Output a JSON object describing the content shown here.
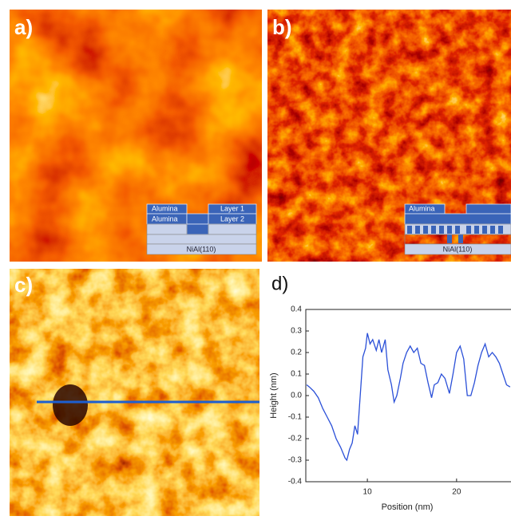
{
  "panels": {
    "a": {
      "label": "a)",
      "schematic": {
        "top_left": "Alumina",
        "top_right": "Layer 1",
        "mid_left": "Alumina",
        "mid_right": "Layer 2",
        "substrate": "NiAl(110)"
      }
    },
    "b": {
      "label": "b)",
      "schematic": {
        "top_left": "Alumina",
        "substrate": "NiAl(110)"
      }
    },
    "c": {
      "label": "c)"
    }
  },
  "chart_data": {
    "type": "line",
    "panel_label": "d)",
    "x_label": "Position (nm)",
    "y_label": "Height (nm)",
    "x": [
      3.2,
      3.5,
      4,
      4.5,
      5,
      5.5,
      6,
      6.5,
      7,
      7.5,
      7.7,
      8,
      8.3,
      8.6,
      8.9,
      9.2,
      9.5,
      9.8,
      10,
      10.3,
      10.6,
      11,
      11.3,
      11.6,
      12,
      12.3,
      12.7,
      13,
      13.3,
      13.7,
      14,
      14.4,
      14.8,
      15.2,
      15.6,
      16,
      16.4,
      16.8,
      17.2,
      17.5,
      17.9,
      18.3,
      18.7,
      19.2,
      19.6,
      20,
      20.4,
      20.8,
      21.2,
      21.6,
      22,
      22.4,
      22.8,
      23.2,
      23.6,
      24,
      24.4,
      24.8,
      25.2,
      25.6,
      26
    ],
    "values": [
      0.05,
      0.04,
      0.02,
      -0.01,
      -0.06,
      -0.1,
      -0.14,
      -0.2,
      -0.24,
      -0.29,
      -0.3,
      -0.25,
      -0.22,
      -0.14,
      -0.18,
      0.0,
      0.18,
      0.22,
      0.29,
      0.24,
      0.26,
      0.21,
      0.26,
      0.2,
      0.26,
      0.12,
      0.05,
      -0.03,
      0.0,
      0.08,
      0.15,
      0.2,
      0.23,
      0.2,
      0.22,
      0.15,
      0.14,
      0.06,
      -0.01,
      0.05,
      0.06,
      0.1,
      0.08,
      0.01,
      0.1,
      0.2,
      0.23,
      0.17,
      0.0,
      0.0,
      0.06,
      0.14,
      0.2,
      0.24,
      0.18,
      0.2,
      0.18,
      0.15,
      0.1,
      0.05,
      0.04
    ],
    "color": "#2b50d8",
    "xlim": [
      3.1,
      26.1
    ],
    "ylim": [
      -0.4,
      0.4
    ],
    "xticks": [
      10,
      20
    ],
    "yticks": [
      -0.4,
      -0.3,
      -0.2,
      -0.1,
      {
        "value": 0,
        "label": "0.0"
      },
      0.1,
      0.2,
      0.3,
      0.4
    ]
  }
}
